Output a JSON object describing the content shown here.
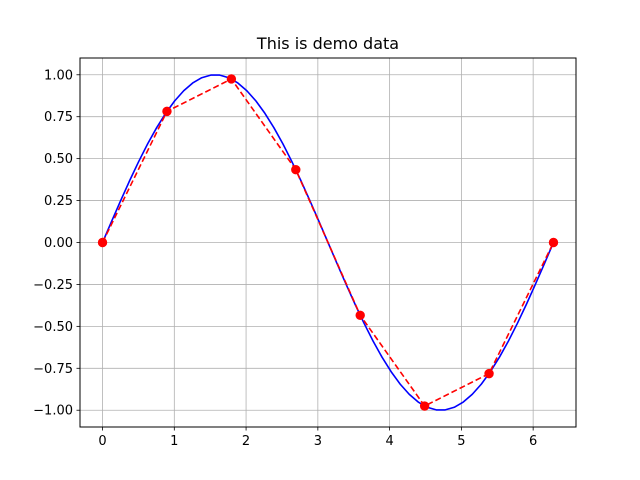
{
  "chart_data": {
    "type": "line",
    "title": "This is demo data",
    "xlabel": "",
    "ylabel": "",
    "xlim": [
      -0.314,
      6.597
    ],
    "ylim": [
      -1.1,
      1.1
    ],
    "grid": true,
    "xticks": [
      0,
      1,
      2,
      3,
      4,
      5,
      6
    ],
    "xtick_labels": [
      "0",
      "1",
      "2",
      "3",
      "4",
      "5",
      "6"
    ],
    "yticks": [
      1.0,
      0.75,
      0.5,
      0.25,
      0.0,
      -0.25,
      -0.5,
      -0.75,
      -1.0
    ],
    "ytick_labels": [
      "1.00",
      "0.75",
      "0.50",
      "0.25",
      "0.00",
      "−0.25",
      "−0.50",
      "−0.75",
      "−1.00"
    ],
    "series": [
      {
        "style": "solid",
        "color": "#0000ff",
        "markers": false,
        "x": [
          0,
          0.1257,
          0.2513,
          0.377,
          0.5027,
          0.6283,
          0.754,
          0.8796,
          1.0053,
          1.131,
          1.2566,
          1.3823,
          1.508,
          1.6336,
          1.7593,
          1.885,
          2.0106,
          2.1363,
          2.2619,
          2.3876,
          2.5133,
          2.6389,
          2.7646,
          2.8903,
          3.0159,
          3.1416,
          3.2673,
          3.3929,
          3.5186,
          3.6442,
          3.7699,
          3.8956,
          4.0212,
          4.1469,
          4.2726,
          4.3982,
          4.5239,
          4.6496,
          4.7752,
          4.9009,
          5.0265,
          5.1522,
          5.2779,
          5.4035,
          5.5292,
          5.6549,
          5.7805,
          5.9062,
          6.0319,
          6.1575,
          6.2832
        ],
        "y": [
          0,
          0.1253,
          0.2487,
          0.3681,
          0.4818,
          0.5878,
          0.6845,
          0.7705,
          0.8443,
          0.9048,
          0.9511,
          0.9823,
          0.998,
          0.998,
          0.9823,
          0.9511,
          0.9048,
          0.8443,
          0.7705,
          0.6845,
          0.5878,
          0.4818,
          0.3681,
          0.2487,
          0.1253,
          0,
          -0.1253,
          -0.2487,
          -0.3681,
          -0.4818,
          -0.5878,
          -0.6845,
          -0.7705,
          -0.8443,
          -0.9048,
          -0.9511,
          -0.9823,
          -0.998,
          -0.998,
          -0.9823,
          -0.9511,
          -0.9048,
          -0.8443,
          -0.7705,
          -0.6845,
          -0.5878,
          -0.4818,
          -0.3681,
          -0.2487,
          -0.1253,
          0
        ]
      },
      {
        "style": "dashed",
        "color": "#ff0000",
        "markers": true,
        "x": [
          0,
          0.8976,
          1.7952,
          2.6928,
          3.5904,
          4.488,
          5.3856,
          6.2832
        ],
        "y": [
          0,
          0.7818,
          0.9749,
          0.4339,
          -0.4339,
          -0.9749,
          -0.7818,
          0
        ]
      }
    ]
  }
}
